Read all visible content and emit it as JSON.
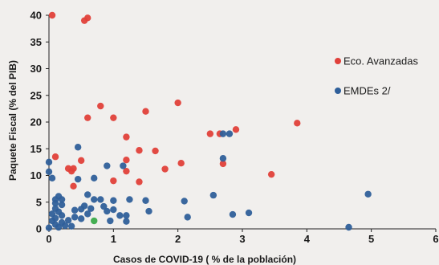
{
  "chart_data": {
    "type": "scatter",
    "xlabel": "Casos de COVID-19 ( % de la población)",
    "ylabel": "Paquete Fiscal (% del PIB)",
    "xlim": [
      0,
      6
    ],
    "ylim": [
      0,
      40
    ],
    "x_ticks": [
      0,
      1,
      2,
      3,
      4,
      5,
      6
    ],
    "y_ticks": [
      0,
      5,
      10,
      15,
      20,
      25,
      30,
      35,
      40
    ],
    "grid": false,
    "legend_position": "right",
    "series": [
      {
        "name": "Eco. Avanzadas",
        "color": "#e0403a",
        "points": [
          [
            0.05,
            40
          ],
          [
            0.6,
            39.5
          ],
          [
            0.55,
            39
          ],
          [
            0.8,
            23
          ],
          [
            0.6,
            20.8
          ],
          [
            1.0,
            20.8
          ],
          [
            1.5,
            22
          ],
          [
            2.0,
            23.6
          ],
          [
            1.2,
            17.2
          ],
          [
            1.4,
            14.7
          ],
          [
            1.65,
            14.6
          ],
          [
            1.2,
            12.9
          ],
          [
            1.2,
            10.8
          ],
          [
            0.1,
            13.5
          ],
          [
            0.3,
            11.3
          ],
          [
            0.38,
            11.3
          ],
          [
            0.35,
            10.8
          ],
          [
            0.5,
            12.8
          ],
          [
            0.38,
            8
          ],
          [
            1.0,
            9
          ],
          [
            1.4,
            8.8
          ],
          [
            1.8,
            11.2
          ],
          [
            2.05,
            12.3
          ],
          [
            2.5,
            17.8
          ],
          [
            2.65,
            17.8
          ],
          [
            2.9,
            18.6
          ],
          [
            2.7,
            12.2
          ],
          [
            3.85,
            19.8
          ],
          [
            3.45,
            10.2
          ]
        ]
      },
      {
        "name": "EMDEs 2/",
        "color": "#2f5f9a",
        "points": [
          [
            0.45,
            15.3
          ],
          [
            0.0,
            12.5
          ],
          [
            0.0,
            10.7
          ],
          [
            0.05,
            9.5
          ],
          [
            0.15,
            6.1
          ],
          [
            0.1,
            5.5
          ],
          [
            0.2,
            5.5
          ],
          [
            0.1,
            4.8
          ],
          [
            0.2,
            4.5
          ],
          [
            0.1,
            3.8
          ],
          [
            0.15,
            3.2
          ],
          [
            0.05,
            2.8
          ],
          [
            0.2,
            2.5
          ],
          [
            0.1,
            2.0
          ],
          [
            0.05,
            1.5
          ],
          [
            0.2,
            1.2
          ],
          [
            0.1,
            0.8
          ],
          [
            0.25,
            0.6
          ],
          [
            0.0,
            0.2
          ],
          [
            0.15,
            0.3
          ],
          [
            0.35,
            0.5
          ],
          [
            0.3,
            1.6
          ],
          [
            0.4,
            2.2
          ],
          [
            0.5,
            1.9
          ],
          [
            0.4,
            3.5
          ],
          [
            0.5,
            3.7
          ],
          [
            0.6,
            2.8
          ],
          [
            0.55,
            4.3
          ],
          [
            0.65,
            3.8
          ],
          [
            0.7,
            5.5
          ],
          [
            0.8,
            5.5
          ],
          [
            0.85,
            4.2
          ],
          [
            0.9,
            3.3
          ],
          [
            0.95,
            1.5
          ],
          [
            1.0,
            5.3
          ],
          [
            1.0,
            3.6
          ],
          [
            1.1,
            2.5
          ],
          [
            1.2,
            1.4
          ],
          [
            1.25,
            5.5
          ],
          [
            1.2,
            2.5
          ],
          [
            0.6,
            6.4
          ],
          [
            0.7,
            9.5
          ],
          [
            0.45,
            9.3
          ],
          [
            0.9,
            11.8
          ],
          [
            1.15,
            11.8
          ],
          [
            1.5,
            5.3
          ],
          [
            1.55,
            3.3
          ],
          [
            2.1,
            5.2
          ],
          [
            2.15,
            2.2
          ],
          [
            2.55,
            6.3
          ],
          [
            2.85,
            2.7
          ],
          [
            3.1,
            3.0
          ],
          [
            2.7,
            17.8
          ],
          [
            2.8,
            17.8
          ],
          [
            2.7,
            13.2
          ],
          [
            4.95,
            6.5
          ],
          [
            4.65,
            0.3
          ]
        ]
      },
      {
        "color": "#3aaa4a",
        "points": [
          [
            0.7,
            1.5
          ]
        ]
      }
    ],
    "legend": [
      {
        "label": "Eco. Avanzadas",
        "color": "#e0403a"
      },
      {
        "label": "EMDEs 2/",
        "color": "#2f5f9a"
      }
    ]
  }
}
